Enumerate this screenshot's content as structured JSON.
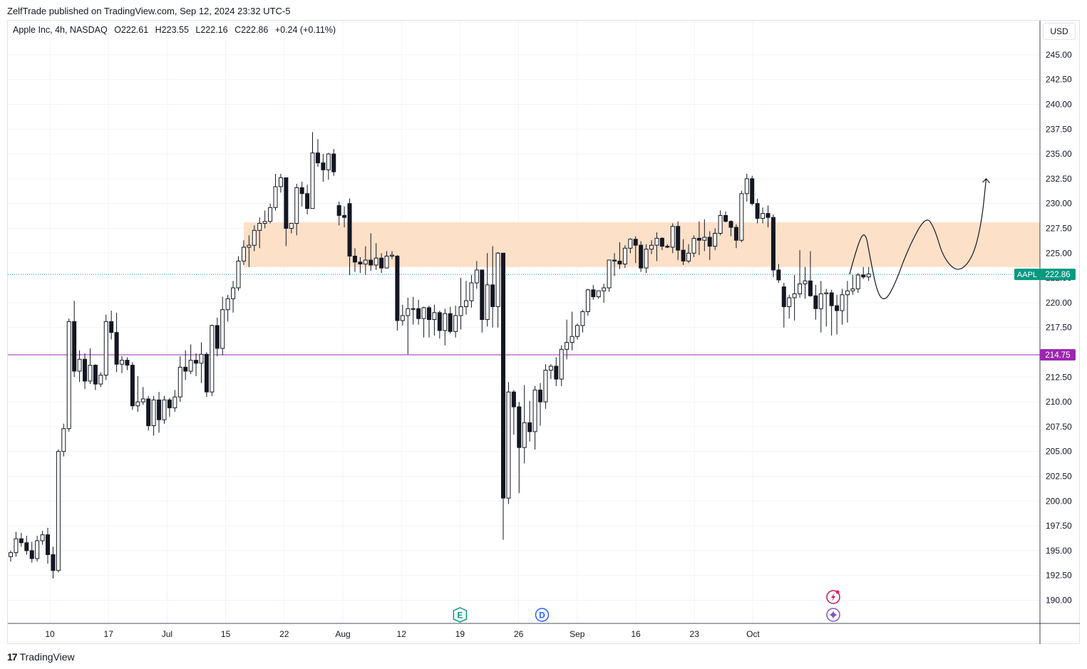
{
  "header": {
    "published_by": "ZelfTrade published on TradingView.com, Sep 12, 2024 23:32 UTC-5"
  },
  "legend": {
    "symbol": "Apple Inc, 4h, NASDAQ",
    "open": "O222.61",
    "high": "H223.55",
    "low": "L222.16",
    "close": "C222.86",
    "change": "+0.24 (+0.11%)"
  },
  "currency_button": "USD",
  "footer": {
    "brand": "TradingView",
    "mark": "17"
  },
  "price_tags": {
    "last": {
      "symbol": "AAPL",
      "value": "222.86",
      "price": 222.86,
      "color": "#089981"
    },
    "line": {
      "value": "214.75",
      "price": 214.75,
      "color": "#9c27b0"
    }
  },
  "event_markers": [
    {
      "label": "E",
      "date_index": 7.0,
      "color": "#089981"
    },
    {
      "label": "D",
      "date_index": 8.4,
      "color": "#2962ff"
    }
  ],
  "event_icons": [
    {
      "name": "lightning-icon",
      "date_index": 13.37,
      "color": "#c2185b"
    },
    {
      "name": "sparkle-icon",
      "date_index": 13.37,
      "color": "#7e57c2"
    }
  ],
  "chart_data": {
    "type": "candlestick",
    "title": "",
    "xlabel": "",
    "ylabel": "",
    "ylim": [
      187.5,
      247.5
    ],
    "y_ticks": [
      "245.00",
      "242.50",
      "240.00",
      "237.50",
      "235.00",
      "232.50",
      "230.00",
      "227.50",
      "225.00",
      "222.50",
      "220.00",
      "217.50",
      "215.00",
      "212.50",
      "210.00",
      "207.50",
      "205.00",
      "202.50",
      "200.00",
      "197.50",
      "195.00",
      "192.50",
      "190.00"
    ],
    "x_ticks": [
      "10",
      "17",
      "Jul",
      "15",
      "22",
      "Aug",
      "12",
      "19",
      "26",
      "Sep",
      "16",
      "23",
      "Oct"
    ],
    "zone": {
      "from": 223.6,
      "to": 228.1,
      "color": "#fde0c8"
    },
    "grid": true,
    "candles_ohlc": [
      [
        194.4,
        195.0,
        193.9,
        194.8
      ],
      [
        194.8,
        196.9,
        194.4,
        196.2
      ],
      [
        196.2,
        196.8,
        195.4,
        195.8
      ],
      [
        195.8,
        196.5,
        194.6,
        195.0
      ],
      [
        195.0,
        195.9,
        193.8,
        194.2
      ],
      [
        194.2,
        196.5,
        193.9,
        196.0
      ],
      [
        196.0,
        197.0,
        195.6,
        196.6
      ],
      [
        196.6,
        197.3,
        193.7,
        194.6
      ],
      [
        194.6,
        195.4,
        192.2,
        193.0
      ],
      [
        193.0,
        205.2,
        192.8,
        205.0
      ],
      [
        205.0,
        207.8,
        204.5,
        207.3
      ],
      [
        207.3,
        218.4,
        207.0,
        218.1
      ],
      [
        218.1,
        220.2,
        212.5,
        213.1
      ],
      [
        213.1,
        215.2,
        212.0,
        214.3
      ],
      [
        214.3,
        214.9,
        211.3,
        212.1
      ],
      [
        212.1,
        215.4,
        211.8,
        213.7
      ],
      [
        213.7,
        213.8,
        211.2,
        211.8
      ],
      [
        211.8,
        213.0,
        211.5,
        212.7
      ],
      [
        212.7,
        218.8,
        212.2,
        218.1
      ],
      [
        218.1,
        219.2,
        216.3,
        217.0
      ],
      [
        217.0,
        219.0,
        213.0,
        213.8
      ],
      [
        213.8,
        214.6,
        212.9,
        214.2
      ],
      [
        214.2,
        214.5,
        213.2,
        213.7
      ],
      [
        213.7,
        214.0,
        209.2,
        209.6
      ],
      [
        209.6,
        212.6,
        209.0,
        210.0
      ],
      [
        210.0,
        211.5,
        209.7,
        210.3
      ],
      [
        210.3,
        210.6,
        207.1,
        207.6
      ],
      [
        207.6,
        210.6,
        206.6,
        210.2
      ],
      [
        210.2,
        211.0,
        206.9,
        208.2
      ],
      [
        208.2,
        210.6,
        207.8,
        210.2
      ],
      [
        210.2,
        210.4,
        208.5,
        209.4
      ],
      [
        209.4,
        211.2,
        209.0,
        210.5
      ],
      [
        210.5,
        214.6,
        210.0,
        213.5
      ],
      [
        213.5,
        215.2,
        212.2,
        213.1
      ],
      [
        213.1,
        215.8,
        212.8,
        214.2
      ],
      [
        214.2,
        214.9,
        212.6,
        213.9
      ],
      [
        213.9,
        216.0,
        211.9,
        214.8
      ],
      [
        214.8,
        215.0,
        210.5,
        211.0
      ],
      [
        211.0,
        217.8,
        210.6,
        217.7
      ],
      [
        217.7,
        218.5,
        214.6,
        215.4
      ],
      [
        215.4,
        220.6,
        214.7,
        219.3
      ],
      [
        219.3,
        220.8,
        218.1,
        220.4
      ],
      [
        220.4,
        222.2,
        219.0,
        221.5
      ],
      [
        221.5,
        224.7,
        221.2,
        224.2
      ],
      [
        224.2,
        226.3,
        223.8,
        225.6
      ],
      [
        225.6,
        226.8,
        223.6,
        225.8
      ],
      [
        225.8,
        227.8,
        225.2,
        227.3
      ],
      [
        227.3,
        228.6,
        225.5,
        228.0
      ],
      [
        228.0,
        229.3,
        227.5,
        228.2
      ],
      [
        228.2,
        230.0,
        228.0,
        229.6
      ],
      [
        229.6,
        233.0,
        229.3,
        231.7
      ],
      [
        231.7,
        233.0,
        231.1,
        232.6
      ],
      [
        232.6,
        231.3,
        225.7,
        227.5
      ],
      [
        227.5,
        228.0,
        227.0,
        228.0
      ],
      [
        228.0,
        232.0,
        226.8,
        231.6
      ],
      [
        231.6,
        232.2,
        229.7,
        231.0
      ],
      [
        231.0,
        231.9,
        228.9,
        229.5
      ],
      [
        229.5,
        237.2,
        230.2,
        235.1
      ],
      [
        235.1,
        236.5,
        233.7,
        234.1
      ],
      [
        234.1,
        235.0,
        232.2,
        233.4
      ],
      [
        233.4,
        235.1,
        232.4,
        235.0
      ],
      [
        235.0,
        235.5,
        232.8,
        233.2
      ],
      [
        229.8,
        230.2,
        227.8,
        228.8
      ],
      [
        228.8,
        229.7,
        227.6,
        228.6
      ],
      [
        230.0,
        230.5,
        222.8,
        224.7
      ],
      [
        224.7,
        225.5,
        223.1,
        224.1
      ],
      [
        224.1,
        224.6,
        223.0,
        223.9
      ],
      [
        223.9,
        225.7,
        222.8,
        224.3
      ],
      [
        224.3,
        227.0,
        223.2,
        223.8
      ],
      [
        223.8,
        226.0,
        223.3,
        224.5
      ],
      [
        224.5,
        225.0,
        223.0,
        223.5
      ],
      [
        223.5,
        225.2,
        223.5,
        224.7
      ],
      [
        224.7,
        225.2,
        224.4,
        224.8
      ],
      [
        224.7,
        224.8,
        217.2,
        218.2
      ],
      [
        218.2,
        219.8,
        217.7,
        218.7
      ],
      [
        218.7,
        220.5,
        214.8,
        219.4
      ],
      [
        219.4,
        220.6,
        217.8,
        219.4
      ],
      [
        219.4,
        220.3,
        217.8,
        218.4
      ],
      [
        218.4,
        219.6,
        216.5,
        219.5
      ],
      [
        219.5,
        219.7,
        216.5,
        218.3
      ],
      [
        218.3,
        219.8,
        216.7,
        219.0
      ],
      [
        219.0,
        219.2,
        216.4,
        217.2
      ],
      [
        217.2,
        219.4,
        215.7,
        218.9
      ],
      [
        218.9,
        219.6,
        216.9,
        217.1
      ],
      [
        217.1,
        219.7,
        216.5,
        218.7
      ],
      [
        218.7,
        222.5,
        217.3,
        219.6
      ],
      [
        219.6,
        222.2,
        218.8,
        220.2
      ],
      [
        220.2,
        222.8,
        219.5,
        222.0
      ],
      [
        222.0,
        224.2,
        221.4,
        223.3
      ],
      [
        223.3,
        222.3,
        217.0,
        218.3
      ],
      [
        218.3,
        225.0,
        217.6,
        221.8
      ],
      [
        221.8,
        225.7,
        217.5,
        219.6
      ],
      [
        219.6,
        225.1,
        217.5,
        225.0
      ],
      [
        225.0,
        214.2,
        196.1,
        200.3
      ],
      [
        200.3,
        212.0,
        199.7,
        211.0
      ],
      [
        211.0,
        211.2,
        206.7,
        209.5
      ],
      [
        209.5,
        210.0,
        200.8,
        205.4
      ],
      [
        205.4,
        211.7,
        203.8,
        207.9
      ],
      [
        207.9,
        210.1,
        206.0,
        207.0
      ],
      [
        207.0,
        211.6,
        205.2,
        211.2
      ],
      [
        211.2,
        211.9,
        207.6,
        210.0
      ],
      [
        210.0,
        213.8,
        209.3,
        213.2
      ],
      [
        213.2,
        213.8,
        212.3,
        213.6
      ],
      [
        213.6,
        214.5,
        211.6,
        212.3
      ],
      [
        212.3,
        215.7,
        211.6,
        215.3
      ],
      [
        215.3,
        218.3,
        214.3,
        216.0
      ],
      [
        216.0,
        219.1,
        215.2,
        216.6
      ],
      [
        216.6,
        217.9,
        216.3,
        217.7
      ],
      [
        217.7,
        219.3,
        217.0,
        219.1
      ],
      [
        219.1,
        221.4,
        218.7,
        221.3
      ],
      [
        221.3,
        221.8,
        220.3,
        220.6
      ],
      [
        220.6,
        221.1,
        220.4,
        221.2
      ],
      [
        221.2,
        221.9,
        220.0,
        221.5
      ],
      [
        221.5,
        223.9,
        221.1,
        224.3
      ],
      [
        224.3,
        225.0,
        222.7,
        224.2
      ],
      [
        224.2,
        226.1,
        223.4,
        223.9
      ],
      [
        223.9,
        225.8,
        223.5,
        225.5
      ],
      [
        225.5,
        226.5,
        225.0,
        226.4
      ],
      [
        226.4,
        226.7,
        224.0,
        225.8
      ],
      [
        225.8,
        226.2,
        223.1,
        223.5
      ],
      [
        223.5,
        225.9,
        223.0,
        225.4
      ],
      [
        225.4,
        226.3,
        224.9,
        225.8
      ],
      [
        225.8,
        227.1,
        224.2,
        226.5
      ],
      [
        226.5,
        226.6,
        225.3,
        225.7
      ],
      [
        225.7,
        225.9,
        225.5,
        225.6
      ],
      [
        225.6,
        228.0,
        225.0,
        227.7
      ],
      [
        227.7,
        228.2,
        224.3,
        225.3
      ],
      [
        225.3,
        226.4,
        223.8,
        224.2
      ],
      [
        224.2,
        225.9,
        224.0,
        225.0
      ],
      [
        225.0,
        226.8,
        224.6,
        226.5
      ],
      [
        226.5,
        228.2,
        224.8,
        226.3
      ],
      [
        226.3,
        228.4,
        225.2,
        226.6
      ],
      [
        226.6,
        227.2,
        224.3,
        225.7
      ],
      [
        225.7,
        227.5,
        225.3,
        227.0
      ],
      [
        227.0,
        229.3,
        226.8,
        228.8
      ],
      [
        228.8,
        229.2,
        228.1,
        228.2
      ],
      [
        228.2,
        228.3,
        226.7,
        227.6
      ],
      [
        227.6,
        227.9,
        225.5,
        226.3
      ],
      [
        226.3,
        231.3,
        226.1,
        231.0
      ],
      [
        231.0,
        233.0,
        230.2,
        232.5
      ],
      [
        232.5,
        232.8,
        229.8,
        230.0
      ],
      [
        230.0,
        230.5,
        228.0,
        228.5
      ],
      [
        228.5,
        229.6,
        228.0,
        229.0
      ],
      [
        229.0,
        229.8,
        227.6,
        228.6
      ],
      [
        228.6,
        228.9,
        222.6,
        223.3
      ],
      [
        223.3,
        223.9,
        222.0,
        222.3
      ],
      [
        221.6,
        222.0,
        217.5,
        219.6
      ],
      [
        219.6,
        220.8,
        218.4,
        220.5
      ],
      [
        220.5,
        222.8,
        218.2,
        220.9
      ],
      [
        220.9,
        225.3,
        220.5,
        221.9
      ],
      [
        221.9,
        223.6,
        220.4,
        222.2
      ],
      [
        222.2,
        225.2,
        220.6,
        220.7
      ],
      [
        220.7,
        221.8,
        218.3,
        219.4
      ],
      [
        219.4,
        222.2,
        217.0,
        220.9
      ],
      [
        220.9,
        221.4,
        217.6,
        221.0
      ],
      [
        221.0,
        221.3,
        216.7,
        219.7
      ],
      [
        219.7,
        220.8,
        216.8,
        219.2
      ],
      [
        219.2,
        221.4,
        217.8,
        220.8
      ],
      [
        220.8,
        222.2,
        218.0,
        221.2
      ],
      [
        221.2,
        222.8,
        220.8,
        221.4
      ],
      [
        221.4,
        223.0,
        221.0,
        222.8
      ],
      [
        222.8,
        223.6,
        222.4,
        222.6
      ],
      [
        222.6,
        223.6,
        222.2,
        222.9
      ]
    ],
    "drawing_path": [
      [
        13.65,
        222.9
      ],
      [
        13.8,
        226.2
      ],
      [
        13.92,
        227.2
      ],
      [
        14.0,
        224.5
      ],
      [
        14.12,
        221.0
      ],
      [
        14.25,
        220.1
      ],
      [
        14.42,
        221.8
      ],
      [
        14.65,
        225.5
      ],
      [
        14.95,
        228.8
      ],
      [
        15.1,
        227.5
      ],
      [
        15.25,
        224.5
      ],
      [
        15.5,
        223.0
      ],
      [
        15.75,
        224.5
      ],
      [
        15.9,
        228.0
      ],
      [
        15.98,
        232.5
      ]
    ]
  }
}
